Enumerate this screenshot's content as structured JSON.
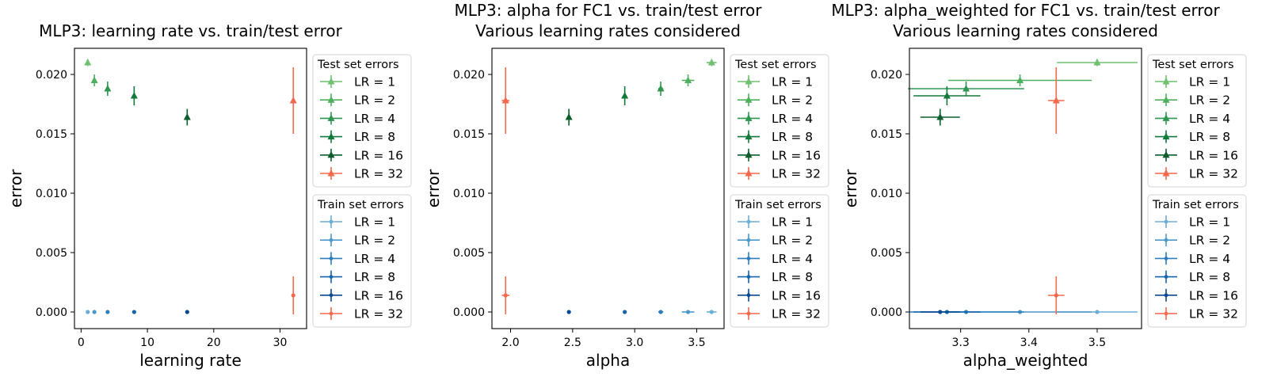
{
  "chart_data": [
    {
      "type": "scatter",
      "title": "MLP3: learning rate vs. train/test error",
      "xlabel": "learning rate",
      "ylabel": "error",
      "xlim": [
        -1,
        34
      ],
      "ylim": [
        -0.0014,
        0.0222
      ],
      "xticks": [
        0,
        10,
        20,
        30
      ],
      "xtick_labels": [
        "0",
        "10",
        "20",
        "30"
      ],
      "yticks": [
        0.0,
        0.005,
        0.01,
        0.015,
        0.02
      ],
      "ytick_labels": [
        "0.000",
        "0.005",
        "0.010",
        "0.015",
        "0.020"
      ],
      "series": [
        {
          "name": "LR = 1",
          "group": "test",
          "x": 1,
          "y": 0.021,
          "xerr": 0,
          "yerr": 0.0003
        },
        {
          "name": "LR = 2",
          "group": "test",
          "x": 2,
          "y": 0.0195,
          "xerr": 0,
          "yerr": 0.0005
        },
        {
          "name": "LR = 4",
          "group": "test",
          "x": 4,
          "y": 0.0188,
          "xerr": 0,
          "yerr": 0.0006
        },
        {
          "name": "LR = 8",
          "group": "test",
          "x": 8,
          "y": 0.0182,
          "xerr": 0,
          "yerr": 0.0008
        },
        {
          "name": "LR = 16",
          "group": "test",
          "x": 16,
          "y": 0.0164,
          "xerr": 0,
          "yerr": 0.0007
        },
        {
          "name": "LR = 32",
          "group": "test",
          "x": 32,
          "y": 0.0178,
          "xerr": 0,
          "yerr": 0.0028
        },
        {
          "name": "LR = 1",
          "group": "train",
          "x": 1,
          "y": 0.0,
          "xerr": 0,
          "yerr": 5e-05
        },
        {
          "name": "LR = 2",
          "group": "train",
          "x": 2,
          "y": 0.0,
          "xerr": 0,
          "yerr": 5e-05
        },
        {
          "name": "LR = 4",
          "group": "train",
          "x": 4,
          "y": 0.0,
          "xerr": 0,
          "yerr": 5e-05
        },
        {
          "name": "LR = 8",
          "group": "train",
          "x": 8,
          "y": 0.0,
          "xerr": 0,
          "yerr": 5e-05
        },
        {
          "name": "LR = 16",
          "group": "train",
          "x": 16,
          "y": 0.0,
          "xerr": 0,
          "yerr": 5e-05
        },
        {
          "name": "LR = 32",
          "group": "train",
          "x": 32,
          "y": 0.0014,
          "xerr": 0,
          "yerr": 0.0016
        }
      ]
    },
    {
      "type": "scatter",
      "title": "MLP3: alpha for FC1 vs. train/test error\nVarious learning rates considered",
      "xlabel": "alpha",
      "ylabel": "error",
      "xlim": [
        1.85,
        3.72
      ],
      "ylim": [
        -0.0014,
        0.0222
      ],
      "xticks": [
        2.0,
        2.5,
        3.0,
        3.5
      ],
      "xtick_labels": [
        "2.0",
        "2.5",
        "3.0",
        "3.5"
      ],
      "yticks": [
        0.0,
        0.005,
        0.01,
        0.015,
        0.02
      ],
      "ytick_labels": [
        "0.000",
        "0.005",
        "0.010",
        "0.015",
        "0.020"
      ],
      "series": [
        {
          "name": "LR = 1",
          "group": "test",
          "x": 3.62,
          "y": 0.021,
          "xerr": 0.04,
          "yerr": 0.0003
        },
        {
          "name": "LR = 2",
          "group": "test",
          "x": 3.43,
          "y": 0.0195,
          "xerr": 0.05,
          "yerr": 0.0005
        },
        {
          "name": "LR = 4",
          "group": "test",
          "x": 3.21,
          "y": 0.0188,
          "xerr": 0.02,
          "yerr": 0.0006
        },
        {
          "name": "LR = 8",
          "group": "test",
          "x": 2.92,
          "y": 0.0182,
          "xerr": 0.01,
          "yerr": 0.0008
        },
        {
          "name": "LR = 16",
          "group": "test",
          "x": 2.47,
          "y": 0.0164,
          "xerr": 0.01,
          "yerr": 0.0007
        },
        {
          "name": "LR = 32",
          "group": "test",
          "x": 1.96,
          "y": 0.0178,
          "xerr": 0.03,
          "yerr": 0.0028
        },
        {
          "name": "LR = 1",
          "group": "train",
          "x": 3.62,
          "y": 0.0,
          "xerr": 0.04,
          "yerr": 5e-05
        },
        {
          "name": "LR = 2",
          "group": "train",
          "x": 3.43,
          "y": 0.0,
          "xerr": 0.05,
          "yerr": 5e-05
        },
        {
          "name": "LR = 4",
          "group": "train",
          "x": 3.21,
          "y": 0.0,
          "xerr": 0.02,
          "yerr": 5e-05
        },
        {
          "name": "LR = 8",
          "group": "train",
          "x": 2.92,
          "y": 0.0,
          "xerr": 0.01,
          "yerr": 5e-05
        },
        {
          "name": "LR = 16",
          "group": "train",
          "x": 2.47,
          "y": 0.0,
          "xerr": 0.01,
          "yerr": 5e-05
        },
        {
          "name": "LR = 32",
          "group": "train",
          "x": 1.96,
          "y": 0.0014,
          "xerr": 0.03,
          "yerr": 0.0016
        }
      ]
    },
    {
      "type": "scatter",
      "title": "MLP3: alpha_weighted for FC1 vs. train/test error\nVarious learning rates considered",
      "xlabel": "alpha_weighted",
      "ylabel": "error",
      "xlim": [
        3.225,
        3.565
      ],
      "ylim": [
        -0.0014,
        0.0222
      ],
      "xticks": [
        3.3,
        3.4,
        3.5
      ],
      "xtick_labels": [
        "3.3",
        "3.4",
        "3.5"
      ],
      "yticks": [
        0.0,
        0.005,
        0.01,
        0.015,
        0.02
      ],
      "ytick_labels": [
        "0.000",
        "0.005",
        "0.010",
        "0.015",
        "0.020"
      ],
      "series": [
        {
          "name": "LR = 1",
          "group": "test",
          "x": 3.5,
          "y": 0.021,
          "xerr": 0.059,
          "yerr": 0.0003
        },
        {
          "name": "LR = 2",
          "group": "test",
          "x": 3.387,
          "y": 0.0195,
          "xerr": 0.105,
          "yerr": 0.0005
        },
        {
          "name": "LR = 4",
          "group": "test",
          "x": 3.308,
          "y": 0.0188,
          "xerr": 0.085,
          "yerr": 0.0006
        },
        {
          "name": "LR = 8",
          "group": "test",
          "x": 3.28,
          "y": 0.0182,
          "xerr": 0.049,
          "yerr": 0.0008
        },
        {
          "name": "LR = 16",
          "group": "test",
          "x": 3.27,
          "y": 0.0164,
          "xerr": 0.029,
          "yerr": 0.0007
        },
        {
          "name": "LR = 32",
          "group": "test",
          "x": 3.44,
          "y": 0.0178,
          "xerr": 0.012,
          "yerr": 0.0028
        },
        {
          "name": "LR = 1",
          "group": "train",
          "x": 3.5,
          "y": 0.0,
          "xerr": 0.059,
          "yerr": 5e-05
        },
        {
          "name": "LR = 2",
          "group": "train",
          "x": 3.387,
          "y": 0.0,
          "xerr": 0.105,
          "yerr": 5e-05
        },
        {
          "name": "LR = 4",
          "group": "train",
          "x": 3.308,
          "y": 0.0,
          "xerr": 0.085,
          "yerr": 5e-05
        },
        {
          "name": "LR = 8",
          "group": "train",
          "x": 3.28,
          "y": 0.0,
          "xerr": 0.049,
          "yerr": 5e-05
        },
        {
          "name": "LR = 16",
          "group": "train",
          "x": 3.27,
          "y": 0.0,
          "xerr": 0.029,
          "yerr": 5e-05
        },
        {
          "name": "LR = 32",
          "group": "train",
          "x": 3.44,
          "y": 0.0014,
          "xerr": 0.012,
          "yerr": 0.0016
        }
      ]
    }
  ],
  "legends": {
    "test_title": "Test set errors",
    "train_title": "Train set errors",
    "labels": [
      "LR = 1",
      "LR = 2",
      "LR = 4",
      "LR = 8",
      "LR = 16",
      "LR = 32"
    ]
  },
  "colors": {
    "test": [
      "#6ec16e",
      "#4eb05e",
      "#2f9650",
      "#11793a",
      "#0b5e2c",
      "#f4694b"
    ],
    "train": [
      "#6aaed6",
      "#4a98c9",
      "#2e7ebc",
      "#1764ab",
      "#084a91",
      "#f4694b"
    ]
  }
}
